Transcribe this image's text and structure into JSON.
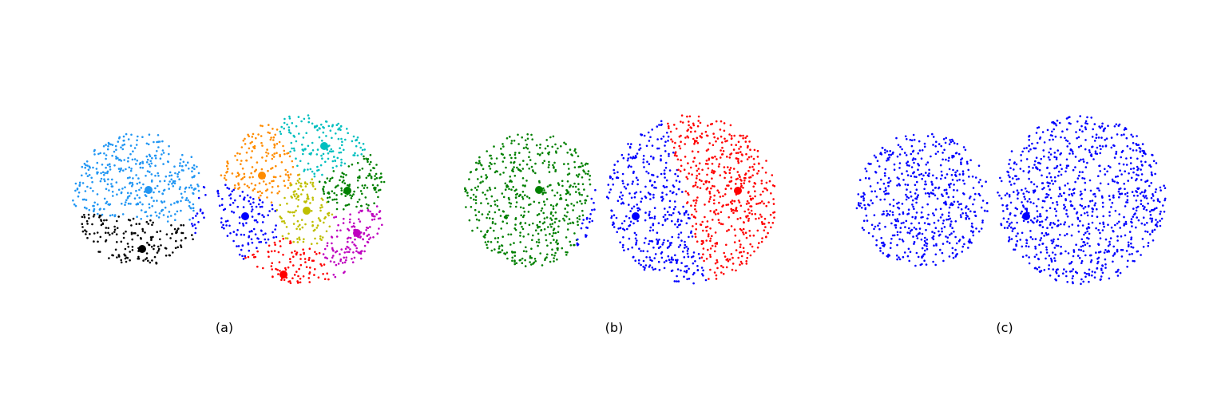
{
  "chart_data": [
    {
      "type": "scatter",
      "panel_label": "(a)",
      "axes": "off",
      "grid": false,
      "blobs": [
        {
          "cx": 175,
          "cy": 250,
          "r": 84,
          "n": 560
        },
        {
          "cx": 378,
          "cy": 250,
          "r": 106,
          "n": 900
        }
      ],
      "clusters": [
        {
          "color": "#2196f3",
          "center": [
            186,
            238
          ]
        },
        {
          "color": "#000000",
          "center": [
            178,
            312
          ]
        },
        {
          "color": "#ff8c00",
          "center": [
            328,
            220
          ]
        },
        {
          "color": "#00bfbf",
          "center": [
            406,
            183
          ]
        },
        {
          "color": "#008000",
          "center": [
            435,
            239
          ]
        },
        {
          "color": "#0000ff",
          "center": [
            307,
            271
          ]
        },
        {
          "color": "#bfbf00",
          "center": [
            384,
            264
          ]
        },
        {
          "color": "#bf00bf",
          "center": [
            447,
            292
          ]
        },
        {
          "color": "#ff0000",
          "center": [
            355,
            344
          ]
        }
      ]
    },
    {
      "type": "scatter",
      "panel_label": "(b)",
      "axes": "off",
      "grid": false,
      "blobs": [
        {
          "cx": 665,
          "cy": 250,
          "r": 84,
          "n": 560
        },
        {
          "cx": 866,
          "cy": 250,
          "r": 106,
          "n": 900
        }
      ],
      "clusters": [
        {
          "color": "#008000",
          "center": [
            675,
            238
          ]
        },
        {
          "color": "#0000ff",
          "center": [
            796,
            271
          ]
        },
        {
          "color": "#ff0000",
          "center": [
            924,
            239
          ]
        }
      ]
    },
    {
      "type": "scatter",
      "panel_label": "(c)",
      "axes": "off",
      "grid": false,
      "blobs": [
        {
          "cx": 1155,
          "cy": 250,
          "r": 84,
          "n": 560
        },
        {
          "cx": 1354,
          "cy": 250,
          "r": 106,
          "n": 900
        }
      ],
      "clusters": [
        {
          "color": "#0000ff",
          "center": [
            1285,
            271
          ]
        }
      ]
    }
  ]
}
